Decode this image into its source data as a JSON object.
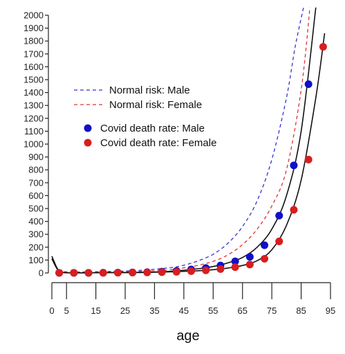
{
  "chart_data": {
    "type": "scatter",
    "title": "",
    "xlabel": "age",
    "ylabel": "",
    "xlim": [
      0,
      95
    ],
    "ylim": [
      0,
      2000
    ],
    "x_ticks": [
      "0",
      "5",
      "15",
      "25",
      "35",
      "45",
      "55",
      "65",
      "75",
      "85",
      "95"
    ],
    "y_ticks": [
      "0",
      "100",
      "200",
      "300",
      "400",
      "500",
      "600",
      "700",
      "800",
      "900",
      "1000",
      "1100",
      "1200",
      "1300",
      "1400",
      "1500",
      "1600",
      "1700",
      "1800",
      "1900",
      "2000"
    ],
    "grid": false,
    "legend_position": "upper-left",
    "legend": [
      {
        "label": "Normal risk: Male",
        "style": "dashed-line",
        "color": "#3333cc"
      },
      {
        "label": "Normal risk: Female",
        "style": "dashed-line",
        "color": "#dd3333"
      },
      {
        "label": "Covid death rate: Male",
        "style": "point",
        "color": "#1010c8"
      },
      {
        "label": "Covid death rate: Female",
        "style": "point",
        "color": "#d81e1e"
      }
    ],
    "series": [
      {
        "name": "Covid death rate: Male",
        "kind": "points",
        "color": "#1010c8",
        "x": [
          2.5,
          7.5,
          12.5,
          17.5,
          22.5,
          27.5,
          32.5,
          37.5,
          42.5,
          47.5,
          52.5,
          57.5,
          62.5,
          67.5,
          72.5,
          77.5,
          82.5,
          87.5
        ],
        "y": [
          1,
          1,
          1,
          2,
          3,
          4,
          6,
          10,
          16,
          27,
          38,
          58,
          90,
          125,
          215,
          445,
          835,
          1465
        ]
      },
      {
        "name": "Covid death rate: Female",
        "kind": "points",
        "color": "#d81e1e",
        "x": [
          2.5,
          7.5,
          12.5,
          17.5,
          22.5,
          27.5,
          32.5,
          37.5,
          42.5,
          47.5,
          52.5,
          57.5,
          62.5,
          67.5,
          72.5,
          77.5,
          82.5,
          87.5,
          92.5
        ],
        "y": [
          1,
          1,
          1,
          1,
          2,
          3,
          4,
          6,
          9,
          14,
          20,
          30,
          45,
          65,
          110,
          245,
          490,
          880,
          1755
        ]
      },
      {
        "name": "Normal risk: Male",
        "kind": "dashed",
        "color": "#3333cc",
        "x": [
          2,
          10,
          20,
          30,
          40,
          45,
          50,
          55,
          60,
          65,
          70,
          75,
          80,
          83,
          86
        ],
        "y": [
          10,
          8,
          12,
          20,
          40,
          60,
          95,
          145,
          230,
          360,
          560,
          880,
          1360,
          1760,
          2080
        ]
      },
      {
        "name": "Normal risk: Female",
        "kind": "dashed",
        "color": "#dd3333",
        "x": [
          2,
          10,
          20,
          30,
          40,
          45,
          50,
          55,
          60,
          65,
          70,
          75,
          80,
          85,
          88
        ],
        "y": [
          8,
          5,
          7,
          12,
          25,
          40,
          60,
          90,
          140,
          220,
          340,
          520,
          800,
          1420,
          2060
        ]
      },
      {
        "name": "Male fit",
        "kind": "solid",
        "color": "#111111",
        "x": [
          0,
          2,
          4,
          10,
          20,
          30,
          40,
          50,
          55,
          60,
          65,
          70,
          75,
          80,
          85,
          90
        ],
        "y": [
          130,
          30,
          4,
          1,
          3,
          5,
          12,
          33,
          50,
          78,
          120,
          200,
          340,
          600,
          1100,
          2060
        ]
      },
      {
        "name": "Female fit",
        "kind": "solid",
        "color": "#111111",
        "x": [
          0,
          2,
          4,
          10,
          20,
          30,
          40,
          50,
          55,
          60,
          65,
          70,
          75,
          80,
          85,
          90,
          93
        ],
        "y": [
          110,
          25,
          3,
          1,
          2,
          3,
          8,
          17,
          25,
          38,
          58,
          95,
          180,
          370,
          720,
          1360,
          1860
        ]
      }
    ]
  }
}
